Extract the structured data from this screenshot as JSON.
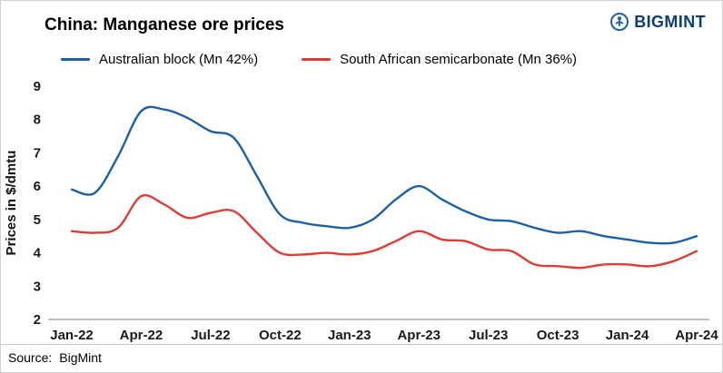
{
  "header": {
    "title": "China: Manganese ore prices",
    "logo": {
      "text": "BIGMINT",
      "icon": "bigmint-miner-icon",
      "icon_color": "#1f5fa8",
      "text_color": "#0d3e78"
    }
  },
  "footer": {
    "source_label": "Source:",
    "source_value": "BigMint"
  },
  "chart_data": {
    "type": "line",
    "title": "China: Manganese ore prices",
    "xlabel": "",
    "ylabel": "Prices in $/dmtu",
    "ylim": [
      2,
      9
    ],
    "yticks": [
      2,
      3,
      4,
      5,
      6,
      7,
      8,
      9
    ],
    "grid": false,
    "legend_position": "top",
    "axis_color": "#9b9b9b",
    "x": [
      "Jan-22",
      "Feb-22",
      "Mar-22",
      "Apr-22",
      "May-22",
      "Jun-22",
      "Jul-22",
      "Aug-22",
      "Sep-22",
      "Oct-22",
      "Nov-22",
      "Dec-22",
      "Jan-23",
      "Feb-23",
      "Mar-23",
      "Apr-23",
      "May-23",
      "Jun-23",
      "Jul-23",
      "Aug-23",
      "Sep-23",
      "Oct-23",
      "Nov-23",
      "Dec-23",
      "Jan-24",
      "Feb-24",
      "Mar-24",
      "Apr-24"
    ],
    "xtick_labels": [
      "Jan-22",
      "Apr-22",
      "Jul-22",
      "Oct-22",
      "Jan-23",
      "Apr-23",
      "Jul-23",
      "Oct-23",
      "Jan-24",
      "Apr-24"
    ],
    "series": [
      {
        "name": "Australian block (Mn 42%)",
        "color": "#1f5fa8",
        "values": [
          5.9,
          5.8,
          6.9,
          8.25,
          8.3,
          8.05,
          7.65,
          7.45,
          6.3,
          5.15,
          4.9,
          4.8,
          4.75,
          5.0,
          5.6,
          6.0,
          5.6,
          5.25,
          5.0,
          4.95,
          4.75,
          4.6,
          4.65,
          4.5,
          4.4,
          4.3,
          4.3,
          4.5
        ]
      },
      {
        "name": "South African semicarbonate (Mn 36%)",
        "color": "#e23a36",
        "values": [
          4.65,
          4.6,
          4.75,
          5.7,
          5.45,
          5.05,
          5.2,
          5.25,
          4.6,
          4.0,
          3.95,
          4.0,
          3.95,
          4.05,
          4.35,
          4.65,
          4.4,
          4.35,
          4.1,
          4.05,
          3.65,
          3.6,
          3.55,
          3.65,
          3.65,
          3.6,
          3.75,
          4.05
        ]
      }
    ]
  }
}
